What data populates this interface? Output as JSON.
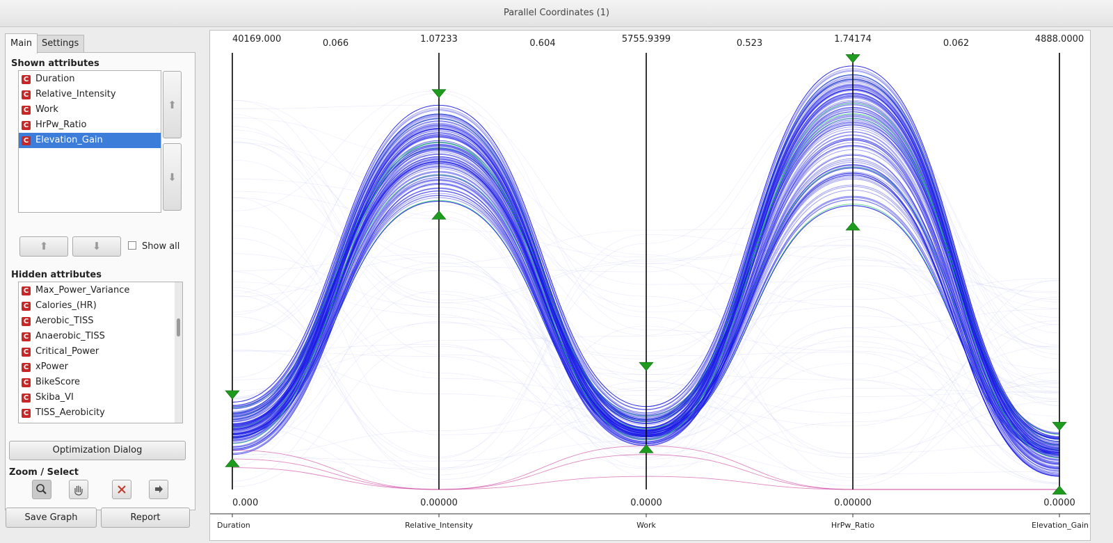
{
  "window": {
    "title": "Parallel Coordinates (1)"
  },
  "tabs": [
    {
      "label": "Main",
      "active": true
    },
    {
      "label": "Settings",
      "active": false
    }
  ],
  "shown_attributes": {
    "heading": "Shown attributes",
    "items": [
      {
        "label": "Duration",
        "selected": false
      },
      {
        "label": "Relative_Intensity",
        "selected": false
      },
      {
        "label": "Work",
        "selected": false
      },
      {
        "label": "HrPw_Ratio",
        "selected": false
      },
      {
        "label": "Elevation_Gain",
        "selected": true
      }
    ],
    "type_icon": "C"
  },
  "show_all": {
    "label": "Show all",
    "checked": false
  },
  "hidden_attributes": {
    "heading": "Hidden attributes",
    "items": [
      "Max_Power_Variance",
      "Calories_(HR)",
      "Aerobic_TISS",
      "Anaerobic_TISS",
      "Critical_Power",
      "xPower",
      "BikeScore",
      "Skiba_VI",
      "TISS_Aerobicity"
    ]
  },
  "optimization_button": "Optimization Dialog",
  "zoom_select": {
    "heading": "Zoom / Select",
    "tools": [
      "zoom-icon",
      "hand-icon",
      "clear-icon",
      "send-icon"
    ]
  },
  "bottom_buttons": {
    "save_graph": "Save Graph",
    "report": "Report"
  },
  "colors": {
    "selected": "#3b7dd8",
    "line": "#1a1ae6",
    "highlight": "#2ecc71",
    "pink": "#cc3399",
    "marker": "#1e9a1e"
  },
  "chart_data": {
    "type": "parallel_coordinates",
    "ylim_label_top": "1",
    "ylim_label_bottom": "0",
    "axes": [
      {
        "name": "Duration",
        "max": "40169.000",
        "min": "0.000",
        "filter": [
          0.063,
          0.215
        ]
      },
      {
        "name": "Relative_Intensity",
        "max": "1.07233",
        "min": "0.00000",
        "filter": [
          0.63,
          0.905
        ]
      },
      {
        "name": "Work",
        "max": "5755.9399",
        "min": "0.0000",
        "filter": [
          0.095,
          0.28
        ]
      },
      {
        "name": "HrPw_Ratio",
        "max": "1.74174",
        "min": "0.00000",
        "filter": [
          0.605,
          0.985
        ]
      },
      {
        "name": "Elevation_Gain",
        "max": "4888.0000",
        "min": "0.0000",
        "filter": [
          0.0,
          0.143
        ]
      }
    ],
    "axis_labels": [
      "Duration",
      "Relative_Intensity",
      "Work",
      "HrPw_Ratio",
      "Elevation_Gain"
    ],
    "correlations": [
      "0.066",
      "0.604",
      "0.523",
      "0.062"
    ],
    "selected_band": [
      [
        0.135,
        0.83,
        0.135,
        0.92,
        0.09
      ],
      [
        0.175,
        0.86,
        0.16,
        0.95,
        0.11
      ],
      [
        0.1,
        0.79,
        0.11,
        0.88,
        0.07
      ],
      [
        0.2,
        0.88,
        0.19,
        0.97,
        0.12
      ],
      [
        0.08,
        0.7,
        0.1,
        0.8,
        0.05
      ],
      [
        0.15,
        0.75,
        0.13,
        0.72,
        0.03
      ],
      [
        0.12,
        0.66,
        0.12,
        0.65,
        0.08
      ],
      [
        0.19,
        0.78,
        0.17,
        0.84,
        0.13
      ]
    ],
    "other_band": [
      [
        0.09,
        0.0,
        0.1,
        0.0,
        0.0
      ],
      [
        0.07,
        0.0,
        0.08,
        0.0,
        0.0
      ],
      [
        0.05,
        0.0,
        0.03,
        0.0,
        0.0
      ]
    ]
  }
}
